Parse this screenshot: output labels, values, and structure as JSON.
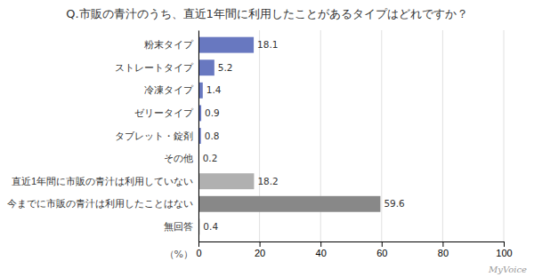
{
  "chart_data": {
    "type": "bar",
    "orientation": "horizontal",
    "title": "Q.市販の青汁のうち、直近1年間に利用したことがあるタイプはどれですか？",
    "categories": [
      "粉末タイプ",
      "ストレートタイプ",
      "冷凍タイプ",
      "ゼリータイプ",
      "タブレット・錠剤",
      "その他",
      "直近1年間に市販の青汁は利用していない",
      "今までに市販の青汁は利用したことはない",
      "無回答"
    ],
    "values": [
      18.1,
      5.2,
      1.4,
      0.9,
      0.8,
      0.2,
      18.2,
      59.6,
      0.4
    ],
    "colors": [
      "#6878c0",
      "#6878c0",
      "#6878c0",
      "#6878c0",
      "#6878c0",
      "#6878c0",
      "#b0b0b0",
      "#888888",
      "#b0b0b0"
    ],
    "xlabel": "（%）",
    "xlim": [
      0,
      100
    ],
    "xticks": [
      0,
      20,
      40,
      60,
      80,
      100
    ],
    "grid": true,
    "data_labels": true,
    "annotations": [
      "MyVoice"
    ]
  }
}
